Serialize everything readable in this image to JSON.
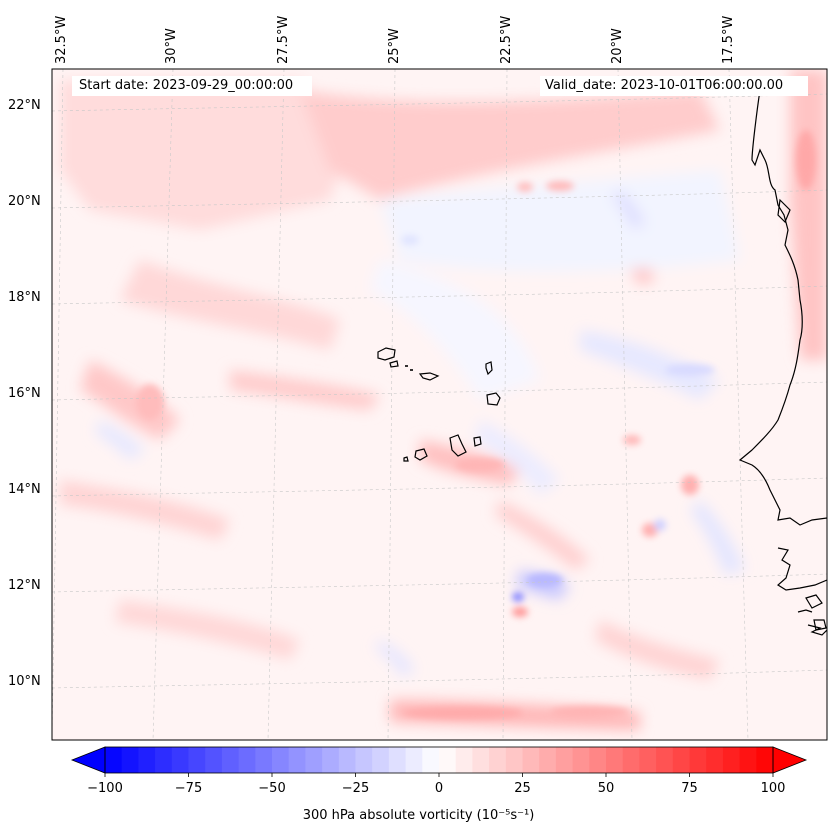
{
  "header": {
    "start_date": "Start date: 2023-09-29_00:00:00",
    "valid_date": "Valid_date: 2023-10-01T06:00:00.00"
  },
  "map": {
    "lon_labels": [
      "32.5°W",
      "30°W",
      "27.5°W",
      "25°W",
      "22.5°W",
      "20°W",
      "17.5°W"
    ],
    "lat_labels": [
      "22°N",
      "20°N",
      "18°N",
      "16°N",
      "14°N",
      "12°N",
      "10°N"
    ],
    "field": "300 hPa absolute vorticity",
    "extent": {
      "lon": [
        -33,
        -16
      ],
      "lat": [
        8.8,
        22.8
      ]
    },
    "gridlines": true,
    "coastline_color": "#000000"
  },
  "colorbar": {
    "label": "300 hPa absolute vorticity (10⁻⁵s⁻¹)",
    "ticks": [
      "−100",
      "−75",
      "−50",
      "−25",
      "0",
      "25",
      "50",
      "75",
      "100"
    ],
    "range": [
      -100,
      100
    ],
    "colormap": "bwr",
    "extend": "both",
    "low_color": "#0000ff",
    "mid_color": "#ffffff",
    "high_color": "#ff0000"
  }
}
